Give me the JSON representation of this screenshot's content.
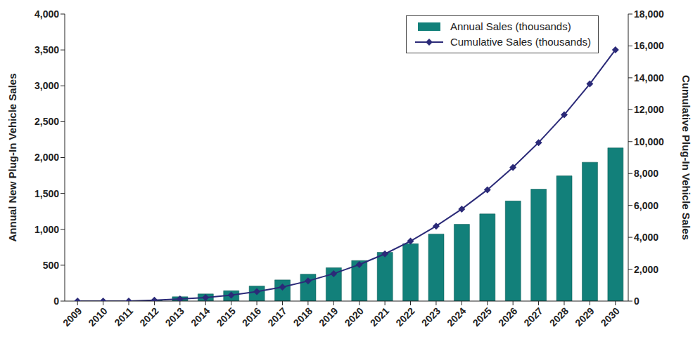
{
  "chart_data": {
    "type": "bar",
    "categories": [
      "2009",
      "2010",
      "2011",
      "2012",
      "2013",
      "2014",
      "2015",
      "2016",
      "2017",
      "2018",
      "2019",
      "2020",
      "2021",
      "2022",
      "2023",
      "2024",
      "2025",
      "2026",
      "2027",
      "2028",
      "2029",
      "2030"
    ],
    "series": [
      {
        "name": "Annual Sales (thousands)",
        "type": "bar",
        "color": "#12807a",
        "values": [
          0,
          0,
          0,
          10,
          60,
          100,
          145,
          210,
          295,
          375,
          465,
          565,
          680,
          800,
          935,
          1070,
          1215,
          1395,
          1560,
          1745,
          1935,
          2135
        ]
      },
      {
        "name": "Cumulative Sales (thousands)",
        "type": "line",
        "axis": "y2",
        "color": "#2b2a78",
        "marker": "diamond",
        "values": [
          0,
          0,
          0,
          50,
          130,
          220,
          370,
          590,
          880,
          1260,
          1720,
          2290,
          2960,
          3760,
          4700,
          5770,
          6980,
          8380,
          9940,
          11680,
          13620,
          15760
        ]
      }
    ],
    "y_label": "Annual New Plug-In Vehicle Sales",
    "y2_label": "Cumulative Plug-In Vehicle Sales",
    "ylim": [
      0,
      4000
    ],
    "yticks": [
      0,
      500,
      {
        "value": 1000,
        "label": "1,000"
      },
      {
        "value": 1500,
        "label": "1,500"
      },
      {
        "value": 2000,
        "label": "2,000"
      },
      {
        "value": 2500,
        "label": "2,500"
      },
      {
        "value": 3000,
        "label": "3,000"
      },
      {
        "value": 3500,
        "label": "3,500"
      },
      {
        "value": 4000,
        "label": "4,000"
      }
    ],
    "y2lim": [
      0,
      18000
    ],
    "y2ticks": [
      0,
      {
        "value": 2000,
        "label": "2,000"
      },
      {
        "value": 4000,
        "label": "4,000"
      },
      {
        "value": 6000,
        "label": "6,000"
      },
      {
        "value": 8000,
        "label": "8,000"
      },
      {
        "value": 10000,
        "label": "10,000"
      },
      {
        "value": 12000,
        "label": "12,000"
      },
      {
        "value": 14000,
        "label": "14,000"
      },
      {
        "value": 16000,
        "label": "16,000"
      },
      {
        "value": 18000,
        "label": "18,000"
      }
    ],
    "grid": false,
    "legend": "top-right"
  }
}
